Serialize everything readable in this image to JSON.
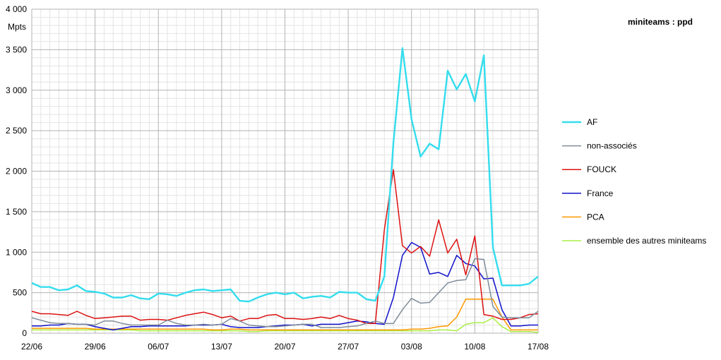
{
  "chart_data": {
    "type": "line",
    "title": "miniteams : ppd",
    "ylabel": "Mpts",
    "xlabel": "",
    "ylim": [
      0,
      4000
    ],
    "y_ticks": [
      0,
      500,
      1000,
      1500,
      2000,
      2500,
      3000,
      3500,
      4000
    ],
    "y_tick_labels": [
      "0",
      "500",
      "1 000",
      "1 500",
      "2 000",
      "2 500",
      "3 000",
      "3 500",
      "4 000"
    ],
    "x_tick_labels": [
      "22/06",
      "29/06",
      "06/07",
      "13/07",
      "20/07",
      "27/07",
      "03/08",
      "10/08",
      "17/08"
    ],
    "x_tick_days": [
      0,
      7,
      14,
      21,
      28,
      35,
      42,
      49,
      56
    ],
    "x_dates": [
      "22/06",
      "23/06",
      "24/06",
      "25/06",
      "26/06",
      "27/06",
      "28/06",
      "29/06",
      "30/06",
      "01/07",
      "02/07",
      "03/07",
      "04/07",
      "05/07",
      "06/07",
      "07/07",
      "08/07",
      "09/07",
      "10/07",
      "11/07",
      "12/07",
      "13/07",
      "14/07",
      "15/07",
      "16/07",
      "17/07",
      "18/07",
      "19/07",
      "20/07",
      "21/07",
      "22/07",
      "23/07",
      "24/07",
      "25/07",
      "26/07",
      "27/07",
      "28/07",
      "29/07",
      "30/07",
      "31/07",
      "01/08",
      "02/08",
      "03/08",
      "04/08",
      "05/08",
      "06/08",
      "07/08",
      "08/08",
      "09/08",
      "10/08",
      "11/08",
      "12/08",
      "13/08",
      "14/08",
      "15/08",
      "16/08",
      "17/08"
    ],
    "grid": true,
    "legend_position": "right",
    "series": [
      {
        "name": "AF",
        "color": "#33ddee",
        "width": 2.4,
        "values": [
          620,
          570,
          570,
          530,
          540,
          590,
          520,
          510,
          490,
          440,
          440,
          470,
          430,
          420,
          490,
          480,
          460,
          500,
          530,
          540,
          520,
          530,
          540,
          400,
          390,
          440,
          480,
          500,
          480,
          500,
          430,
          450,
          460,
          440,
          510,
          500,
          500,
          420,
          400,
          700,
          2350,
          3520,
          2640,
          2180,
          2340,
          2270,
          3240,
          3010,
          3200,
          2860,
          3430,
          1060,
          590,
          590,
          590,
          610,
          700
        ]
      },
      {
        "name": "non-associés",
        "color": "#7f8c9a",
        "width": 1.5,
        "values": [
          190,
          160,
          130,
          120,
          120,
          110,
          110,
          100,
          150,
          150,
          120,
          100,
          100,
          100,
          100,
          160,
          120,
          100,
          100,
          110,
          100,
          110,
          180,
          150,
          100,
          90,
          80,
          80,
          90,
          100,
          110,
          110,
          70,
          70,
          70,
          80,
          90,
          120,
          150,
          120,
          120,
          290,
          430,
          370,
          380,
          500,
          620,
          650,
          660,
          920,
          910,
          330,
          200,
          190,
          190,
          190,
          270
        ]
      },
      {
        "name": "FOUCK",
        "color": "#dd1111",
        "width": 1.5,
        "values": [
          270,
          240,
          240,
          230,
          220,
          270,
          220,
          180,
          190,
          200,
          210,
          210,
          160,
          170,
          170,
          160,
          190,
          220,
          240,
          260,
          230,
          190,
          210,
          150,
          180,
          180,
          220,
          230,
          180,
          180,
          170,
          180,
          200,
          180,
          220,
          180,
          160,
          120,
          120,
          1280,
          2020,
          1080,
          990,
          1070,
          950,
          1400,
          990,
          1160,
          720,
          1200,
          230,
          210,
          170,
          170,
          190,
          230,
          240
        ]
      },
      {
        "name": "France",
        "color": "#1111cc",
        "width": 1.5,
        "values": [
          90,
          90,
          100,
          100,
          120,
          110,
          110,
          80,
          60,
          40,
          60,
          80,
          80,
          90,
          90,
          90,
          90,
          90,
          100,
          100,
          100,
          110,
          80,
          70,
          70,
          70,
          80,
          90,
          100,
          100,
          110,
          90,
          110,
          110,
          110,
          130,
          150,
          140,
          120,
          110,
          440,
          960,
          1120,
          1060,
          730,
          750,
          700,
          960,
          860,
          830,
          670,
          680,
          290,
          90,
          90,
          100,
          100
        ]
      },
      {
        "name": "PCA",
        "color": "#ff9900",
        "width": 1.5,
        "values": [
          60,
          60,
          60,
          60,
          60,
          60,
          60,
          50,
          50,
          50,
          50,
          50,
          50,
          50,
          50,
          50,
          50,
          50,
          50,
          50,
          40,
          40,
          50,
          50,
          40,
          40,
          40,
          40,
          40,
          40,
          40,
          40,
          40,
          40,
          40,
          40,
          40,
          40,
          40,
          40,
          40,
          40,
          50,
          50,
          60,
          80,
          90,
          200,
          420,
          420,
          420,
          420,
          200,
          40,
          40,
          40,
          40
        ]
      },
      {
        "name": "ensemble des autres miniteams",
        "color": "#aaee44",
        "width": 1.5,
        "values": [
          40,
          40,
          40,
          40,
          40,
          40,
          40,
          40,
          40,
          40,
          40,
          40,
          30,
          30,
          30,
          30,
          30,
          30,
          30,
          30,
          30,
          30,
          30,
          30,
          20,
          20,
          30,
          30,
          30,
          30,
          30,
          30,
          30,
          30,
          30,
          30,
          30,
          30,
          30,
          30,
          30,
          30,
          30,
          30,
          30,
          40,
          40,
          30,
          110,
          130,
          130,
          190,
          80,
          20,
          20,
          20,
          10
        ]
      }
    ]
  }
}
